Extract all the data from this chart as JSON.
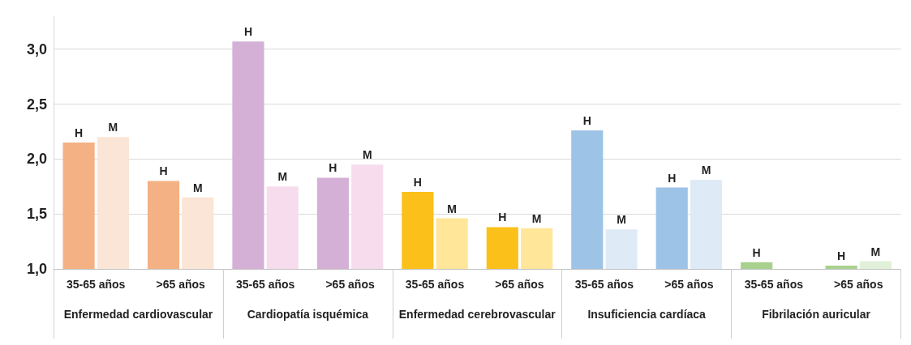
{
  "chart_data": {
    "type": "bar",
    "categories": [
      "35-65 años",
      ">65 años",
      "35-65 años",
      ">65 años",
      "35-65 años",
      ">65 años",
      "35-65 años",
      ">65 años",
      "35-65 años",
      ">65 años"
    ],
    "annotations": [
      "Enfermedad cardiovascular",
      "Cardiopatía isquémica",
      "Enfermedad cerebrovascular",
      "Insuficiencia cardíaca",
      "Fibrilación auricular"
    ],
    "series": [
      {
        "name": "H",
        "colors": [
          "#f4b183",
          "#f4b183",
          "#d5b0d6",
          "#d5b0d6",
          "#fbc01a",
          "#fbc01a",
          "#9dc3e6",
          "#9dc3e6",
          "#a9d18e",
          "#a9d18e"
        ],
        "values": [
          2.15,
          1.8,
          3.07,
          1.83,
          1.7,
          1.38,
          2.26,
          1.74,
          1.06,
          1.03
        ]
      },
      {
        "name": "M",
        "colors": [
          "#fbe5d6",
          "#fbe5d6",
          "#f6dcec",
          "#f6dcec",
          "#ffe699",
          "#ffe699",
          "#deebf7",
          "#deebf7",
          "#e2f0d9",
          "#e2f0d9"
        ],
        "values": [
          2.2,
          1.65,
          1.75,
          1.95,
          1.46,
          1.37,
          1.36,
          1.81,
          null,
          1.07
        ]
      }
    ],
    "ylim": [
      1,
      3.3
    ],
    "yticks": [
      {
        "value": 1,
        "label": "1,0"
      },
      {
        "value": 1.5,
        "label": "1,5"
      },
      {
        "value": 2,
        "label": "2,0"
      },
      {
        "value": 2.5,
        "label": "2,5"
      },
      {
        "value": 3,
        "label": "3,0"
      }
    ],
    "grid": "y",
    "legend": false
  }
}
